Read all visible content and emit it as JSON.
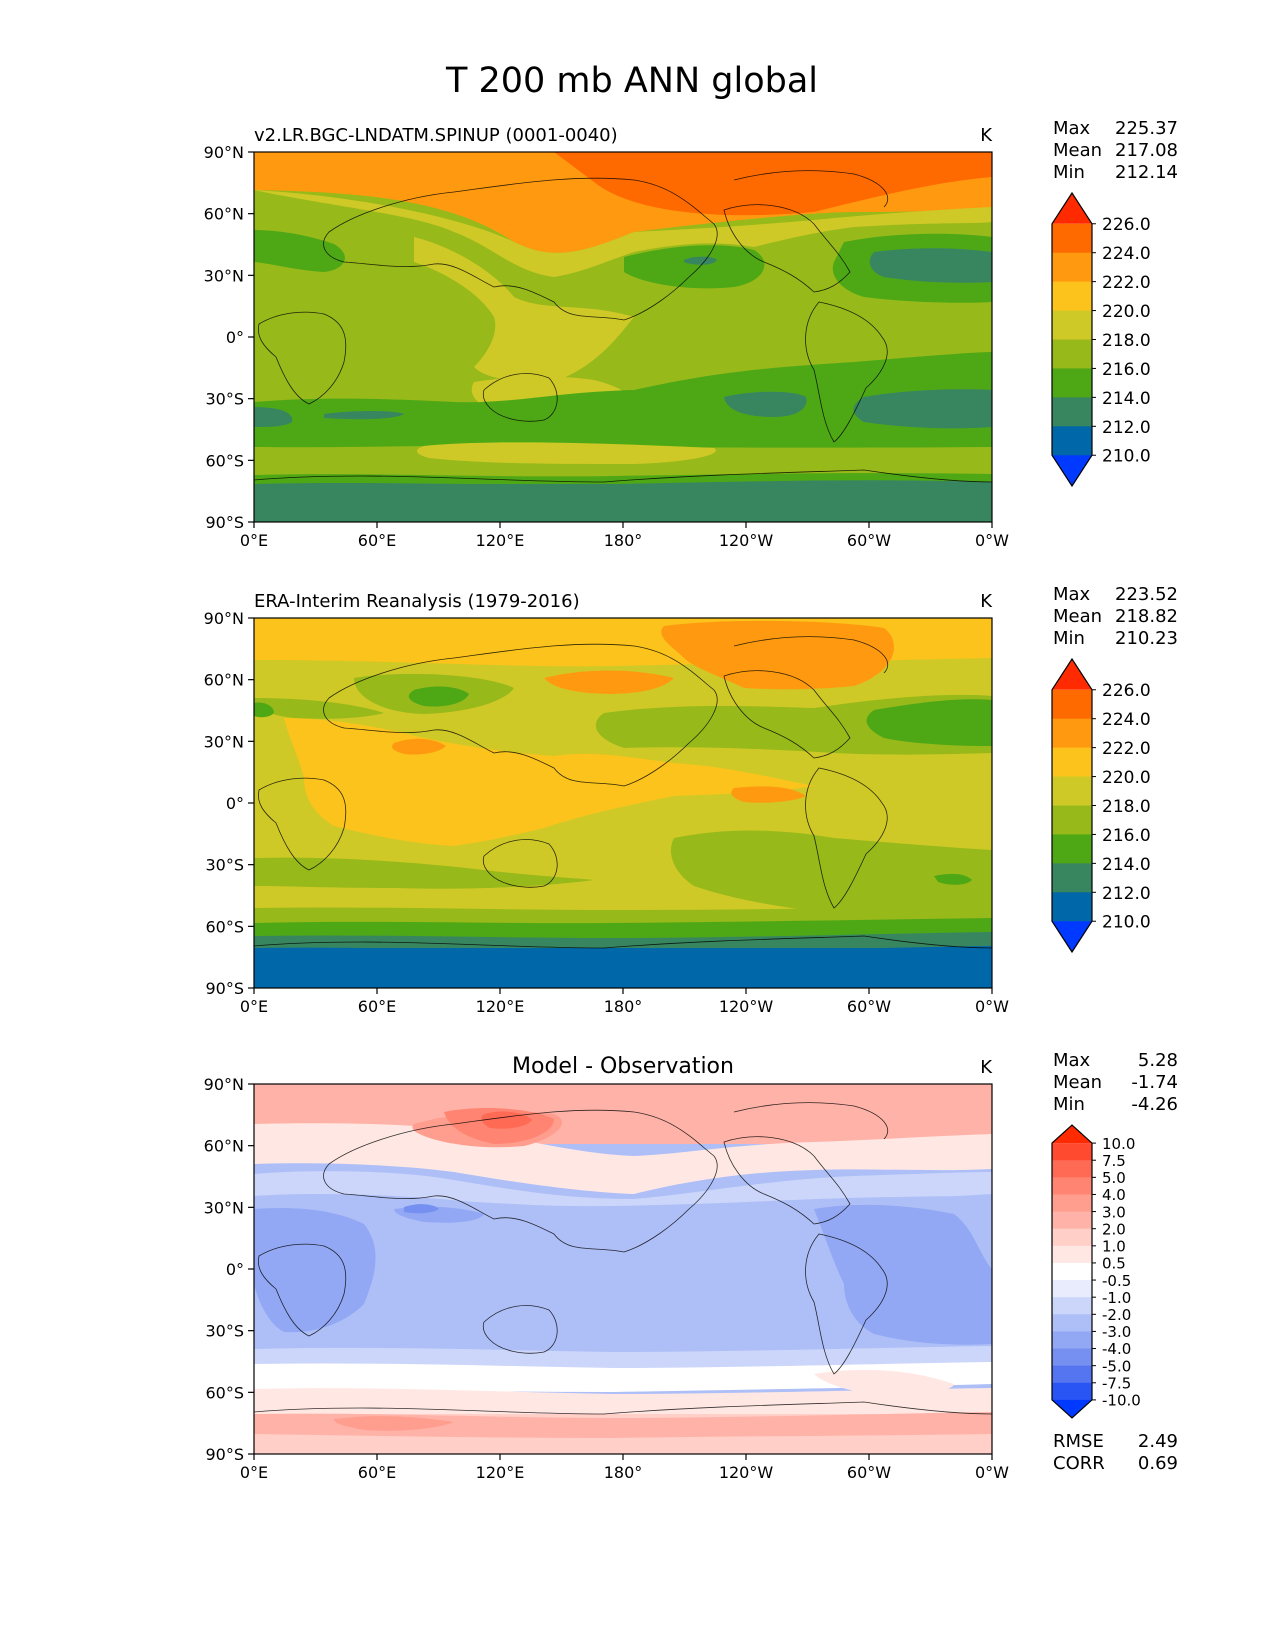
{
  "figure_title": "T 200 mb ANN global",
  "panels": [
    {
      "title": "v2.LR.BGC-LNDATM.SPINUP (0001-0040)",
      "title_style": "left",
      "units": "K",
      "stats": [
        {
          "label": "Max",
          "value": "225.37"
        },
        {
          "label": "Mean",
          "value": "217.08"
        },
        {
          "label": "Min",
          "value": "212.14"
        }
      ],
      "colorbar": {
        "ticks": [
          "226.0",
          "224.0",
          "222.0",
          "220.0",
          "218.0",
          "216.0",
          "214.0",
          "212.0",
          "210.0"
        ],
        "colors": [
          "#ff2a00",
          "#ff6a00",
          "#ff9a10",
          "#fbc31b",
          "#cfc927",
          "#98b91a",
          "#4ea816",
          "#388660",
          "#0068a8",
          "#0039ff"
        ]
      }
    },
    {
      "title": "ERA-Interim Reanalysis (1979-2016)",
      "title_style": "left",
      "units": "K",
      "stats": [
        {
          "label": "Max",
          "value": "223.52"
        },
        {
          "label": "Mean",
          "value": "218.82"
        },
        {
          "label": "Min",
          "value": "210.23"
        }
      ],
      "colorbar": {
        "ticks": [
          "226.0",
          "224.0",
          "222.0",
          "220.0",
          "218.0",
          "216.0",
          "214.0",
          "212.0",
          "210.0"
        ],
        "colors": [
          "#ff2a00",
          "#ff6a00",
          "#ff9a10",
          "#fbc31b",
          "#cfc927",
          "#98b91a",
          "#4ea816",
          "#388660",
          "#0068a8",
          "#0039ff"
        ]
      }
    },
    {
      "title": "Model - Observation",
      "title_style": "center",
      "units": "K",
      "stats": [
        {
          "label": "Max",
          "value": "5.28"
        },
        {
          "label": "Mean",
          "value": "-1.74"
        },
        {
          "label": "Min",
          "value": "-4.26"
        }
      ],
      "colorbar": {
        "ticks": [
          "10.0",
          "7.5",
          "5.0",
          "4.0",
          "3.0",
          "2.0",
          "1.0",
          "0.5",
          "-0.5",
          "-1.0",
          "-2.0",
          "-3.0",
          "-4.0",
          "-5.0",
          "-7.5",
          "-10.0"
        ],
        "colors": [
          "#ff2a00",
          "#ff4a2f",
          "#ff6a55",
          "#ff8572",
          "#ff9d8e",
          "#ffb3a8",
          "#ffcfc8",
          "#ffe8e4",
          "#ffffff",
          "#e8ecfc",
          "#ccd6fa",
          "#aebff7",
          "#93a8f4",
          "#7590f0",
          "#5574ef",
          "#2a55f5",
          "#0039ff"
        ]
      },
      "footer_stats": [
        {
          "label": "RMSE",
          "value": "2.49"
        },
        {
          "label": "CORR",
          "value": "0.69"
        }
      ]
    }
  ],
  "map_axes": {
    "lat_ticks": [
      "90°N",
      "60°N",
      "30°N",
      "0°",
      "30°S",
      "60°S",
      "90°S"
    ],
    "lon_ticks": [
      "0°E",
      "60°E",
      "120°E",
      "180°",
      "120°W",
      "60°W",
      "0°W"
    ]
  },
  "chart_data": [
    {
      "type": "heatmap",
      "title": "v2.LR.BGC-LNDATM.SPINUP (0001-0040)",
      "variable": "T 200 mb ANN",
      "units": "K",
      "projection": "cylindrical equidistant",
      "lon_range": [
        0,
        360
      ],
      "lat_range": [
        -90,
        90
      ],
      "color_levels": [
        210,
        212,
        214,
        216,
        218,
        220,
        222,
        224,
        226
      ],
      "summary": {
        "max": 225.37,
        "mean": 217.08,
        "min": 212.14
      },
      "field_values_by_lat": [
        {
          "lat": 80,
          "value": 223
        },
        {
          "lat": 60,
          "value": 219.5
        },
        {
          "lat": 40,
          "value": 216
        },
        {
          "lat": 20,
          "value": 217
        },
        {
          "lat": 0,
          "value": 217
        },
        {
          "lat": -20,
          "value": 216.5
        },
        {
          "lat": -40,
          "value": 215
        },
        {
          "lat": -60,
          "value": 217
        },
        {
          "lat": -80,
          "value": 213
        }
      ]
    },
    {
      "type": "heatmap",
      "title": "ERA-Interim Reanalysis (1979-2016)",
      "variable": "T 200 mb ANN",
      "units": "K",
      "projection": "cylindrical equidistant",
      "lon_range": [
        0,
        360
      ],
      "lat_range": [
        -90,
        90
      ],
      "color_levels": [
        210,
        212,
        214,
        216,
        218,
        220,
        222,
        224,
        226
      ],
      "summary": {
        "max": 223.52,
        "mean": 218.82,
        "min": 210.23
      },
      "field_values_by_lat": [
        {
          "lat": 80,
          "value": 221
        },
        {
          "lat": 60,
          "value": 219
        },
        {
          "lat": 40,
          "value": 218
        },
        {
          "lat": 20,
          "value": 220
        },
        {
          "lat": 0,
          "value": 219.5
        },
        {
          "lat": -20,
          "value": 218.5
        },
        {
          "lat": -40,
          "value": 217.5
        },
        {
          "lat": -60,
          "value": 218
        },
        {
          "lat": -80,
          "value": 212.5
        }
      ]
    },
    {
      "type": "heatmap",
      "title": "Model - Observation",
      "variable": "T 200 mb ANN difference",
      "units": "K",
      "projection": "cylindrical equidistant",
      "lon_range": [
        0,
        360
      ],
      "lat_range": [
        -90,
        90
      ],
      "color_levels": [
        -10,
        -7.5,
        -5,
        -4,
        -3,
        -2,
        -1,
        -0.5,
        0.5,
        1,
        2,
        3,
        4,
        5,
        7.5,
        10
      ],
      "summary": {
        "max": 5.28,
        "mean": -1.74,
        "min": -4.26,
        "rmse": 2.49,
        "corr": 0.69
      },
      "field_values_by_lat": [
        {
          "lat": 80,
          "value": 2
        },
        {
          "lat": 60,
          "value": 1
        },
        {
          "lat": 45,
          "value": 0
        },
        {
          "lat": 30,
          "value": -2.5
        },
        {
          "lat": 0,
          "value": -2.5
        },
        {
          "lat": -30,
          "value": -2.5
        },
        {
          "lat": -50,
          "value": -1
        },
        {
          "lat": -65,
          "value": 0
        },
        {
          "lat": -80,
          "value": 1.5
        }
      ]
    }
  ]
}
